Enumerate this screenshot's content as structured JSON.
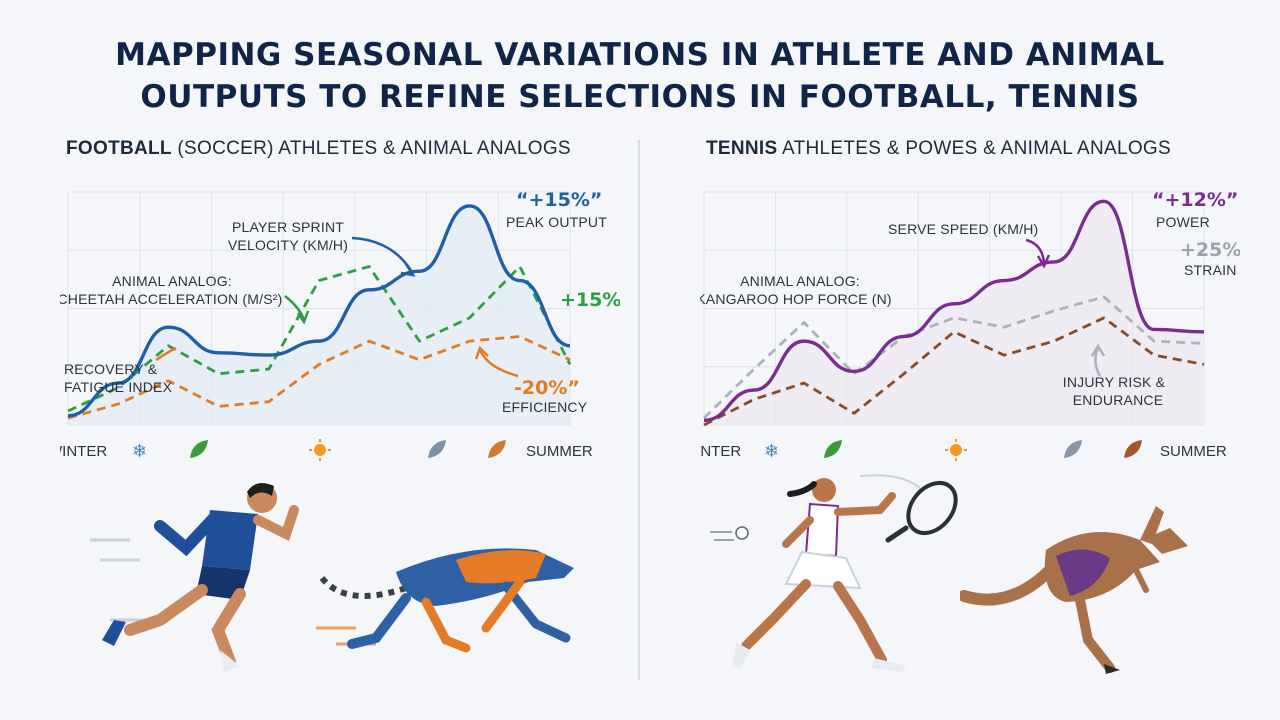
{
  "title": {
    "line1": "MAPPING SEASONAL VARIATIONS IN ATHLETE AND ANIMAL",
    "line2": "OUTPUTS TO REFINE SELECTIONS IN FOOTBALL, TENNIS"
  },
  "colors": {
    "football_player": "#1f5fa8",
    "cheetah": "#2e9e44",
    "football_recovery": "#e07b24",
    "tennis_serve": "#7a2c8f",
    "kangaroo": "#aab2bb",
    "injury": "#8a4b24"
  },
  "football": {
    "heading_bold": "FOOTBALL",
    "heading_rest": " (SOCCER) ATHLETES & ANIMAL ANALOGS",
    "labels": {
      "sprint_l1": "PLAYER SPRINT",
      "sprint_l2": "VELOCITY (KM/H)",
      "analog_l1": "ANIMAL ANALOG:",
      "analog_l2": "CHEETAH ACCELERATION (M/S²)",
      "recovery_l1": "RECOVERY &",
      "recovery_l2": "FATIGUE INDEX",
      "peak_value": "“+15%”",
      "peak_text": "PEAK OUTPUT",
      "green_value": "+15%",
      "orange_value": "-20%”",
      "orange_text": "EFFICIENCY"
    },
    "season_start": "WINTER",
    "season_end": "SUMMER"
  },
  "tennis": {
    "heading_bold": "TENNIS",
    "heading_rest": " ATHLETES & POWES & ANIMAL ANALOGS",
    "labels": {
      "serve": "SERVE SPEED (KM/H)",
      "analog_l1": "ANIMAL ANALOG:",
      "analog_l2": "KANGAROO HOP FORCE (N)",
      "power_value": "“+12%”",
      "power_text": "POWER",
      "strain_value": "+25%”",
      "strain_text": "STRAIN",
      "injury_l1": "INJURY RISK &",
      "injury_l2": "ENDURANCE"
    },
    "season_start": "WINTER",
    "season_end": "SUMMER"
  },
  "season_icons": [
    "snowflake-icon",
    "leaf-icon",
    "sun-icon",
    "leaf-icon",
    "autumn-leaf-icon"
  ],
  "chart_data": [
    {
      "type": "line",
      "x": [
        0,
        1,
        2,
        3,
        4,
        5,
        6,
        7,
        8,
        9,
        10
      ],
      "ylim": [
        0,
        10
      ],
      "grid": true,
      "series": [
        {
          "name": "PLAYER SPRINT VELOCITY (KM/H)",
          "color": "#1f5fa8",
          "dash": false,
          "values": [
            0.4,
            1.8,
            4.2,
            3.1,
            3.0,
            3.6,
            5.8,
            6.6,
            9.4,
            6.2,
            3.4
          ]
        },
        {
          "name": "ANIMAL ANALOG: CHEETAH ACCELERATION (M/S²)",
          "color": "#2e9e44",
          "dash": true,
          "values": [
            0.6,
            1.6,
            3.4,
            2.2,
            2.4,
            6.2,
            6.8,
            3.6,
            4.6,
            6.8,
            2.6
          ]
        },
        {
          "name": "RECOVERY & FATIGUE INDEX",
          "color": "#e07b24",
          "dash": true,
          "values": [
            0.3,
            0.9,
            1.9,
            0.8,
            1.0,
            2.6,
            3.6,
            2.8,
            3.6,
            3.8,
            2.8
          ]
        }
      ]
    },
    {
      "type": "line",
      "x": [
        0,
        1,
        2,
        3,
        4,
        5,
        6,
        7,
        8,
        9,
        10
      ],
      "ylim": [
        0,
        10
      ],
      "grid": true,
      "series": [
        {
          "name": "SERVE SPEED (KM/H)",
          "color": "#7a2c8f",
          "dash": false,
          "values": [
            0.2,
            1.5,
            3.6,
            2.3,
            3.8,
            5.2,
            6.2,
            7.0,
            9.6,
            4.1,
            4.0
          ]
        },
        {
          "name": "ANIMAL ANALOG: KANGAROO HOP FORCE (N)",
          "color": "#aab2bb",
          "dash": true,
          "values": [
            0.3,
            2.4,
            4.4,
            2.2,
            3.8,
            4.6,
            4.2,
            4.9,
            5.5,
            3.6,
            3.5
          ]
        },
        {
          "name": "INJURY RISK & ENDURANCE",
          "color": "#8a4b24",
          "dash": true,
          "values": [
            0.0,
            1.1,
            1.8,
            0.5,
            2.2,
            4.0,
            3.0,
            3.6,
            4.6,
            3.0,
            2.6
          ]
        }
      ]
    }
  ]
}
